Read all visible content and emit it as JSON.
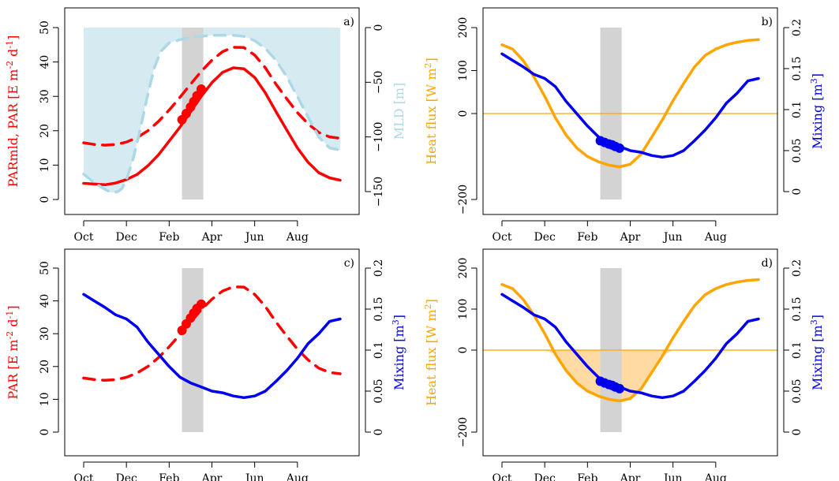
{
  "colors": {
    "red": "#ff0000",
    "blue": "#0000ee",
    "orange": "#ffa500",
    "lightblue": "#add8e6",
    "gray": "#d3d3d3"
  },
  "chart_data": [
    {
      "type": "line",
      "panel_label": "a)",
      "xlabels": [
        "Oct",
        "Dec",
        "Feb",
        "Apr",
        "Jun",
        "Aug"
      ],
      "xlim": [
        0,
        12
      ],
      "ylabel_left": "PARmld, PAR [E m⁻² d⁻¹]",
      "ylabel_right": "MLD [m]",
      "left_ticks": [
        "0",
        "10",
        "20",
        "30",
        "40",
        "50"
      ],
      "right_ticks": [
        "0",
        "−50",
        "−100",
        "−150"
      ],
      "ylim_left": [
        0,
        50
      ],
      "ylim_right": [
        -150,
        0
      ],
      "shaded_band_months": [
        4.6,
        5.6
      ],
      "series": [
        {
          "axis": "left",
          "style": "solid",
          "color": "red",
          "x": [
            0,
            0.5,
            1,
            1.5,
            2,
            2.5,
            3,
            3.5,
            4,
            4.5,
            5,
            5.5,
            6,
            6.5,
            7,
            7.5,
            8,
            8.5,
            9,
            9.5,
            10,
            10.5,
            11,
            11.5,
            12
          ],
          "values": [
            4.7,
            4.5,
            4.3,
            4.8,
            5.8,
            7.3,
            9.8,
            13,
            17,
            21,
            25.5,
            30,
            34,
            37,
            38.3,
            38,
            35.5,
            31,
            25.5,
            20.2,
            15,
            10.8,
            7.8,
            6.3,
            5.6
          ]
        },
        {
          "axis": "left",
          "style": "dashed",
          "color": "red",
          "x": [
            0,
            0.5,
            1,
            1.5,
            2,
            2.5,
            3,
            3.5,
            4,
            4.5,
            5,
            5.5,
            6,
            6.5,
            7,
            7.5,
            8,
            8.5,
            9,
            9.5,
            10,
            10.5,
            11,
            11.5,
            12
          ],
          "values": [
            16.5,
            16,
            15.8,
            16,
            16.7,
            18,
            20,
            22.7,
            26,
            29.7,
            33.5,
            37.3,
            40.5,
            43,
            44.3,
            44.2,
            42,
            38.3,
            33.5,
            29.3,
            25.3,
            22,
            19.5,
            18.2,
            17.8
          ]
        },
        {
          "axis": "right",
          "style": "dashed",
          "color": "lightblue",
          "x": [
            0,
            0.5,
            1,
            1.3,
            1.6,
            1.8,
            2,
            2.3,
            2.6,
            3,
            3.3,
            3.6,
            4,
            4.5,
            5,
            5.5,
            6,
            6.5,
            7,
            7.5,
            8,
            8.5,
            9,
            9.5,
            10,
            10.5,
            11,
            11.5,
            12
          ],
          "values": [
            -134,
            -142,
            -148,
            -151,
            -150,
            -147,
            -139,
            -121,
            -97,
            -61,
            -37,
            -22,
            -14,
            -11,
            -9,
            -8,
            -7,
            -7,
            -7,
            -8,
            -12,
            -19,
            -30,
            -45,
            -63,
            -82,
            -100,
            -110,
            -112
          ]
        }
      ],
      "markers": {
        "axis": "left",
        "color": "red",
        "x": [
          4.6,
          4.8,
          5.0,
          5.15,
          5.3,
          5.5
        ],
        "values": [
          23.2,
          25,
          26.9,
          28.5,
          30.2,
          32.1
        ]
      }
    },
    {
      "type": "line",
      "panel_label": "b)",
      "xlabels": [
        "Oct",
        "Dec",
        "Feb",
        "Apr",
        "Jun",
        "Aug"
      ],
      "xlim": [
        0,
        12
      ],
      "ylabel_left": "Heat flux [W m²]",
      "ylabel_right": "Mixing [m³]",
      "left_ticks": [
        "−200",
        "0",
        "100",
        "200"
      ],
      "right_ticks": [
        "0",
        "0.05",
        "0.1",
        "0.15",
        "0.2"
      ],
      "ylim_left": [
        -200,
        200
      ],
      "ylim_right": [
        0,
        0.2
      ],
      "shaded_band_months": [
        4.6,
        5.6
      ],
      "hline_left": 0,
      "series": [
        {
          "axis": "left",
          "style": "solid",
          "color": "orange",
          "x": [
            0,
            0.5,
            1,
            1.5,
            2,
            2.5,
            3,
            3.5,
            4,
            4.5,
            5,
            5.5,
            6,
            6.5,
            7,
            7.5,
            8,
            8.5,
            9,
            9.5,
            10,
            10.5,
            11,
            11.5,
            12
          ],
          "values": [
            160,
            150,
            123,
            85,
            40,
            -10,
            -50,
            -80,
            -100,
            -112,
            -120,
            -124,
            -118,
            -95,
            -55,
            -15,
            30,
            70,
            108,
            135,
            150,
            160,
            166,
            170,
            172
          ]
        },
        {
          "axis": "right",
          "style": "solid",
          "color": "blue",
          "x": [
            0,
            0.5,
            1,
            1.5,
            2,
            2.5,
            3,
            3.5,
            4,
            4.5,
            5,
            5.5,
            6,
            6.5,
            7,
            7.5,
            8,
            8.5,
            9,
            9.5,
            10,
            10.5,
            11,
            11.5,
            12
          ],
          "values": [
            0.168,
            0.16,
            0.152,
            0.143,
            0.138,
            0.128,
            0.11,
            0.095,
            0.08,
            0.067,
            0.06,
            0.055,
            0.05,
            0.048,
            0.044,
            0.042,
            0.044,
            0.05,
            0.062,
            0.075,
            0.09,
            0.108,
            0.12,
            0.135,
            0.138
          ]
        }
      ],
      "markers": {
        "axis": "right",
        "color": "blue",
        "x": [
          4.6,
          4.8,
          5.0,
          5.15,
          5.3,
          5.5
        ],
        "values": [
          0.062,
          0.06,
          0.058,
          0.057,
          0.055,
          0.053
        ]
      }
    },
    {
      "type": "line",
      "panel_label": "c)",
      "xlabels": [
        "Oct",
        "Dec",
        "Feb",
        "Apr",
        "Jun",
        "Aug"
      ],
      "xlim": [
        0,
        12
      ],
      "ylabel_left": "PAR [E m⁻² d⁻¹]",
      "ylabel_right": "Mixing [m³]",
      "left_ticks": [
        "0",
        "10",
        "20",
        "30",
        "40",
        "50"
      ],
      "right_ticks": [
        "0",
        "0.05",
        "0.1",
        "0.15",
        "0.2"
      ],
      "ylim_left": [
        0,
        50
      ],
      "ylim_right": [
        0,
        0.2
      ],
      "shaded_band_months": [
        4.6,
        5.6
      ],
      "series": [
        {
          "axis": "left",
          "style": "dashed",
          "color": "red",
          "x": [
            0,
            0.5,
            1,
            1.5,
            2,
            2.5,
            3,
            3.5,
            4,
            4.5,
            5,
            5.5,
            6,
            6.5,
            7,
            7.5,
            8,
            8.5,
            9,
            9.5,
            10,
            10.5,
            11,
            11.5,
            12
          ],
          "values": [
            16.5,
            16,
            15.8,
            16,
            16.7,
            18,
            20,
            22.7,
            26,
            29.7,
            33.5,
            37.3,
            40.5,
            43,
            44.3,
            44.2,
            42,
            38.3,
            33.5,
            29.3,
            25.3,
            22,
            19.5,
            18.2,
            17.8
          ]
        },
        {
          "axis": "right",
          "style": "solid",
          "color": "blue",
          "x": [
            0,
            0.5,
            1,
            1.5,
            2,
            2.5,
            3,
            3.5,
            4,
            4.5,
            5,
            5.5,
            6,
            6.5,
            7,
            7.5,
            8,
            8.5,
            9,
            9.5,
            10,
            10.5,
            11,
            11.5,
            12
          ],
          "values": [
            0.168,
            0.16,
            0.152,
            0.143,
            0.138,
            0.128,
            0.11,
            0.095,
            0.08,
            0.067,
            0.06,
            0.055,
            0.05,
            0.048,
            0.044,
            0.042,
            0.044,
            0.05,
            0.062,
            0.075,
            0.09,
            0.108,
            0.12,
            0.135,
            0.138
          ]
        }
      ],
      "markers": {
        "axis": "left",
        "color": "red",
        "x": [
          4.6,
          4.8,
          5.0,
          5.15,
          5.3,
          5.5
        ],
        "values": [
          31,
          33,
          34.8,
          36.3,
          37.7,
          39
        ]
      }
    },
    {
      "type": "area",
      "panel_label": "d)",
      "xlabels": [
        "Oct",
        "Dec",
        "Feb",
        "Apr",
        "Jun",
        "Aug"
      ],
      "xlim": [
        0,
        12
      ],
      "ylabel_left": "Heat flux [W m²]",
      "ylabel_right": "Mixing [m³]",
      "left_ticks": [
        "−200",
        "0",
        "100",
        "200"
      ],
      "right_ticks": [
        "0",
        "0.05",
        "0.1",
        "0.15",
        "0.2"
      ],
      "ylim_left": [
        -200,
        200
      ],
      "ylim_right": [
        0,
        0.2
      ],
      "shaded_band_months": [
        4.6,
        5.6
      ],
      "hline_left": 0,
      "fill_below_zero_of": "orange",
      "series": [
        {
          "axis": "left",
          "style": "solid",
          "color": "orange",
          "x": [
            0,
            0.5,
            1,
            1.5,
            2,
            2.5,
            3,
            3.5,
            4,
            4.5,
            5,
            5.5,
            6,
            6.5,
            7,
            7.5,
            8,
            8.5,
            9,
            9.5,
            10,
            10.5,
            11,
            11.5,
            12
          ],
          "values": [
            160,
            150,
            123,
            85,
            40,
            -10,
            -50,
            -80,
            -100,
            -112,
            -120,
            -124,
            -118,
            -95,
            -55,
            -15,
            30,
            70,
            108,
            135,
            150,
            160,
            166,
            170,
            172
          ]
        },
        {
          "axis": "right",
          "style": "solid",
          "color": "blue",
          "x": [
            0,
            0.5,
            1,
            1.5,
            2,
            2.5,
            3,
            3.5,
            4,
            4.5,
            5,
            5.5,
            6,
            6.5,
            7,
            7.5,
            8,
            8.5,
            9,
            9.5,
            10,
            10.5,
            11,
            11.5,
            12
          ],
          "values": [
            0.168,
            0.16,
            0.152,
            0.143,
            0.138,
            0.128,
            0.11,
            0.095,
            0.08,
            0.067,
            0.06,
            0.055,
            0.05,
            0.048,
            0.044,
            0.042,
            0.044,
            0.05,
            0.062,
            0.075,
            0.09,
            0.108,
            0.12,
            0.135,
            0.138
          ]
        }
      ],
      "markers": {
        "axis": "right",
        "color": "blue",
        "x": [
          4.6,
          4.8,
          5.0,
          5.15,
          5.3,
          5.5
        ],
        "values": [
          0.062,
          0.06,
          0.058,
          0.057,
          0.055,
          0.053
        ]
      }
    }
  ]
}
